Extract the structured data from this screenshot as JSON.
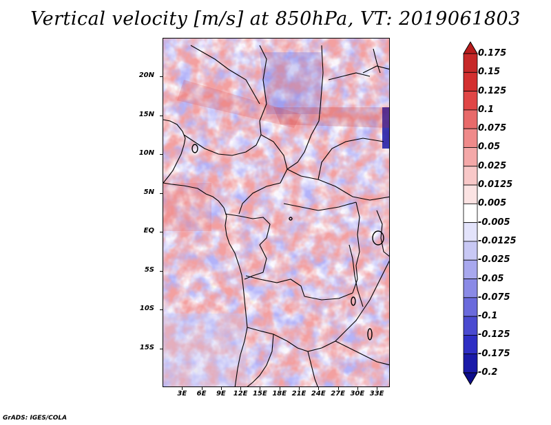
{
  "title": "Vertical velocity [m/s] at 850hPa, VT: 2019061803",
  "credit": "GrADS: IGES/COLA",
  "map": {
    "variable": "Vertical velocity",
    "units": "m/s",
    "level": "850hPa",
    "valid_time": "2019061803",
    "lon_range": [
      0,
      35
    ],
    "lat_range": [
      -20,
      25
    ],
    "lat_labels": [
      "20N",
      "15N",
      "10N",
      "5N",
      "EQ",
      "5S",
      "10S",
      "15S"
    ],
    "lat_values": [
      20,
      15,
      10,
      5,
      0,
      -5,
      -10,
      -15
    ],
    "lon_labels": [
      "3E",
      "6E",
      "9E",
      "12E",
      "15E",
      "18E",
      "21E",
      "24E",
      "27E",
      "30E",
      "33E"
    ],
    "lon_values": [
      3,
      6,
      9,
      12,
      15,
      18,
      21,
      24,
      27,
      30,
      33
    ]
  },
  "colorbar": {
    "labels": [
      "0.175",
      "0.15",
      "0.125",
      "0.1",
      "0.075",
      "0.05",
      "0.025",
      "0.0125",
      "0.005",
      "-0.005",
      "-0.0125",
      "-0.025",
      "-0.05",
      "-0.075",
      "-0.1",
      "-0.125",
      "-0.175",
      "-0.2"
    ],
    "colors": [
      "#b71c1c",
      "#c62828",
      "#d32f2f",
      "#e04646",
      "#e86a6a",
      "#ef8a8a",
      "#f4a8a8",
      "#f8c8c8",
      "#fbe3e3",
      "#ffffff",
      "#e3e3fb",
      "#c8c8f4",
      "#a8a8ee",
      "#8a8ae6",
      "#6a6adc",
      "#4a4ad0",
      "#2e2ec4",
      "#1a1aa8",
      "#0d0d8a"
    ]
  }
}
